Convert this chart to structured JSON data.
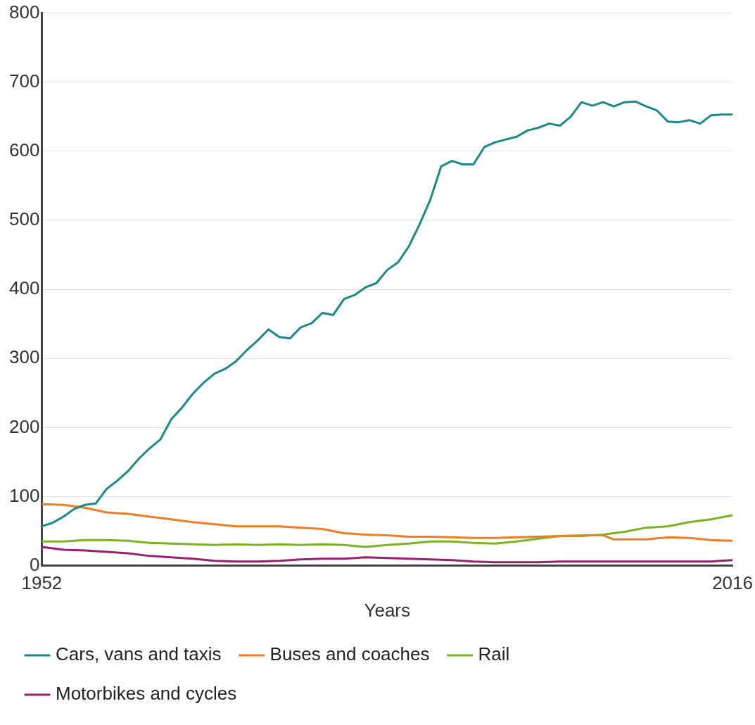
{
  "chart_data": {
    "type": "line",
    "xlabel": "Years",
    "xlim": [
      1952,
      2016
    ],
    "xticks": [
      1952,
      2016
    ],
    "ylim": [
      0,
      800
    ],
    "yticks": [
      0,
      100,
      200,
      300,
      400,
      500,
      600,
      700,
      800
    ],
    "grid": "y",
    "legend": "bottom",
    "marker": "none",
    "line_style": "solid",
    "series": [
      {
        "name": "Cars, vans and taxis",
        "color": "#1a8a87",
        "x": [
          1952,
          1953,
          1954,
          1955,
          1956,
          1957,
          1958,
          1959,
          1960,
          1961,
          1962,
          1963,
          1964,
          1965,
          1966,
          1967,
          1968,
          1969,
          1970,
          1971,
          1972,
          1973,
          1974,
          1975,
          1976,
          1977,
          1978,
          1979,
          1980,
          1981,
          1982,
          1983,
          1984,
          1985,
          1986,
          1987,
          1988,
          1989,
          1990,
          1991,
          1992,
          1993,
          1994,
          1995,
          1996,
          1997,
          1998,
          1999,
          2000,
          2001,
          2002,
          2003,
          2004,
          2005,
          2006,
          2007,
          2008,
          2009,
          2010,
          2011,
          2012,
          2013,
          2014,
          2015,
          2016
        ],
        "values": [
          57,
          62,
          71,
          82,
          88,
          90,
          111,
          123,
          137,
          155,
          170,
          183,
          212,
          229,
          249,
          265,
          278,
          285,
          296,
          312,
          326,
          342,
          331,
          329,
          345,
          351,
          366,
          363,
          386,
          392,
          403,
          409,
          428,
          439,
          462,
          494,
          530,
          578,
          586,
          581,
          581,
          606,
          613,
          617,
          621,
          630,
          634,
          640,
          637,
          650,
          671,
          666,
          671,
          665,
          671,
          672,
          665,
          659,
          643,
          642,
          645,
          640,
          652,
          653,
          653
        ]
      },
      {
        "name": "Buses and coaches",
        "color": "#f27d20",
        "x": [
          1952,
          1954,
          1956,
          1958,
          1960,
          1962,
          1964,
          1966,
          1968,
          1970,
          1972,
          1974,
          1976,
          1978,
          1980,
          1982,
          1984,
          1986,
          1988,
          1990,
          1992,
          1994,
          1996,
          1998,
          2000,
          2002,
          2004,
          2005,
          2008,
          2010,
          2012,
          2014,
          2016
        ],
        "values": [
          89,
          88,
          84,
          77,
          75,
          71,
          67,
          63,
          60,
          57,
          57,
          57,
          55,
          53,
          47,
          45,
          44,
          42,
          42,
          41,
          40,
          40,
          41,
          42,
          43,
          44,
          44,
          38,
          38,
          41,
          40,
          37,
          36
        ]
      },
      {
        "name": "Rail",
        "color": "#7ab51d",
        "x": [
          1952,
          1954,
          1956,
          1958,
          1960,
          1962,
          1964,
          1966,
          1968,
          1970,
          1972,
          1974,
          1976,
          1978,
          1980,
          1982,
          1984,
          1986,
          1988,
          1990,
          1992,
          1994,
          1996,
          1998,
          2000,
          2002,
          2004,
          2006,
          2008,
          2010,
          2012,
          2014,
          2016
        ],
        "values": [
          35,
          35,
          37,
          37,
          36,
          33,
          32,
          31,
          30,
          31,
          30,
          31,
          30,
          31,
          30,
          27,
          30,
          32,
          35,
          35,
          33,
          32,
          35,
          39,
          43,
          43,
          45,
          49,
          55,
          57,
          63,
          67,
          73
        ]
      },
      {
        "name": "Motorbikes and cycles",
        "color": "#9c1f6e",
        "x": [
          1952,
          1954,
          1956,
          1958,
          1960,
          1962,
          1964,
          1966,
          1968,
          1970,
          1972,
          1974,
          1976,
          1978,
          1980,
          1982,
          1984,
          1986,
          1988,
          1990,
          1992,
          1994,
          1996,
          1998,
          2000,
          2002,
          2004,
          2006,
          2008,
          2010,
          2012,
          2014,
          2016
        ],
        "values": [
          27,
          23,
          22,
          20,
          18,
          14,
          12,
          10,
          7,
          6,
          6,
          7,
          9,
          10,
          10,
          12,
          11,
          10,
          9,
          8,
          6,
          5,
          5,
          5,
          6,
          6,
          6,
          6,
          6,
          6,
          6,
          6,
          8
        ]
      }
    ]
  }
}
